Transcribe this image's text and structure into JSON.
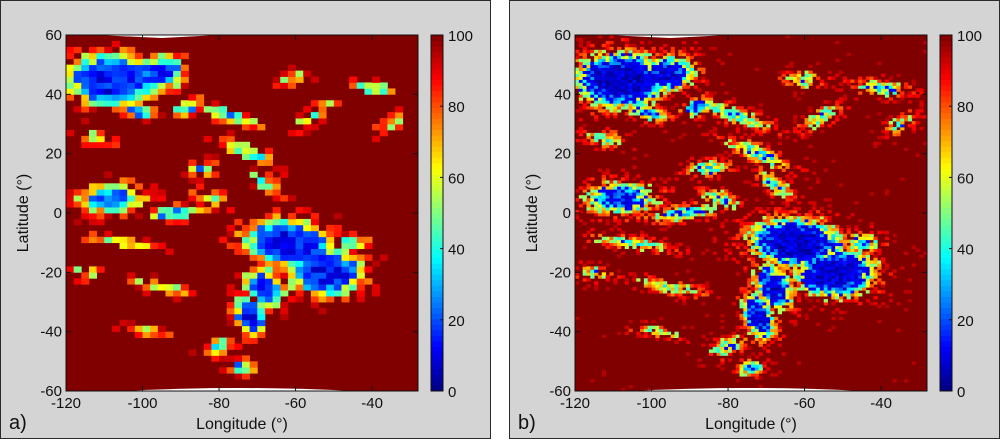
{
  "chart_data": [
    {
      "type": "heatmap",
      "panel_label": "a)",
      "xlabel": "Longitude (°)",
      "ylabel": "Latitude (°)",
      "xlim": [
        -120,
        -28
      ],
      "ylim": [
        -60,
        60
      ],
      "xticks": [
        -120,
        -100,
        -80,
        -60,
        -40
      ],
      "yticks": [
        -60,
        -40,
        -20,
        0,
        20,
        40,
        60
      ],
      "colorbar": {
        "range": [
          0,
          100
        ],
        "ticks": [
          0,
          20,
          40,
          60,
          80,
          100
        ]
      },
      "colormap": "jet",
      "resolution": "coarse",
      "grid": false
    },
    {
      "type": "heatmap",
      "panel_label": "b)",
      "xlabel": "Longitude (°)",
      "ylabel": "Latitude (°)",
      "xlim": [
        -120,
        -28
      ],
      "ylim": [
        -60,
        60
      ],
      "xticks": [
        -120,
        -100,
        -80,
        -60,
        -40
      ],
      "yticks": [
        -60,
        -40,
        -20,
        0,
        20,
        40,
        60
      ],
      "colorbar": {
        "range": [
          0,
          100
        ],
        "ticks": [
          0,
          20,
          40,
          60,
          80,
          100
        ]
      },
      "colormap": "jet",
      "resolution": "fine",
      "grid": false
    }
  ]
}
